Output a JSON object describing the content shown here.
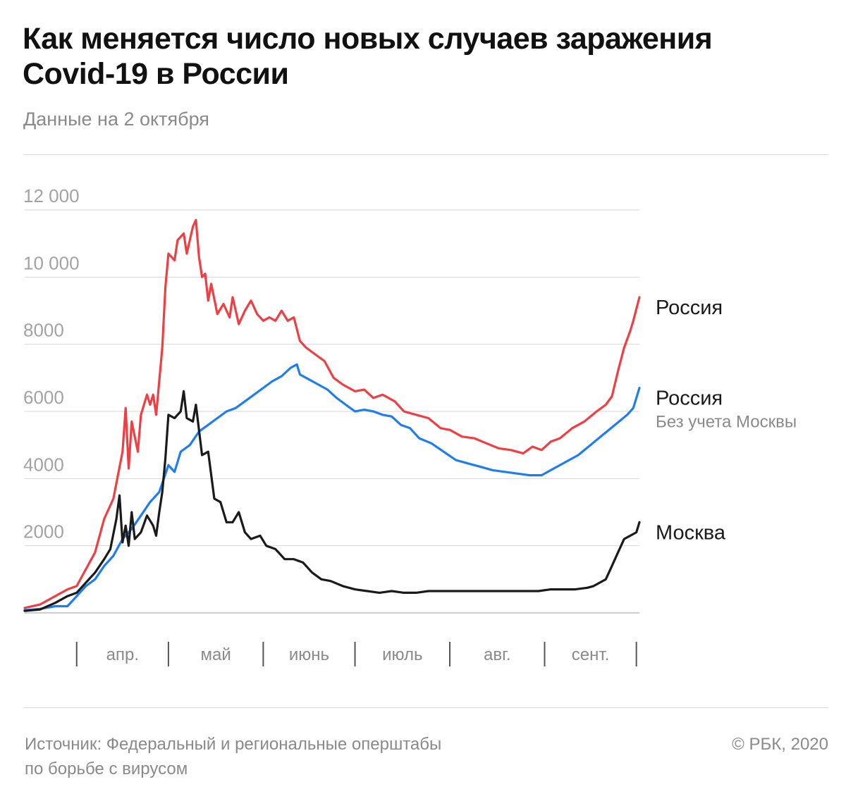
{
  "header": {
    "title_line1": "Как меняется число новых случаев заражения",
    "title_line2": "Covid-19 в России",
    "subtitle": "Данные на 2 октября"
  },
  "footer": {
    "source_line1": "Источник: Федеральный и региональные оперштабы",
    "source_line2": "по борьбе с вирусом",
    "copyright": "© РБК, 2020"
  },
  "chart_data": {
    "type": "line",
    "title": "Как меняется число новых случаев заражения Covid-19 в России",
    "subtitle": "Данные на 2 октября",
    "x_type": "date",
    "x_range": [
      "2020-03-15",
      "2020-10-02"
    ],
    "ylim": [
      0,
      12000
    ],
    "yticks": [
      0,
      2000,
      4000,
      6000,
      8000,
      10000,
      12000
    ],
    "ytick_labels": [
      "",
      "2000",
      "4000",
      "6000",
      "8000",
      "10 000",
      "12 000"
    ],
    "xtick_labels": [
      "апр.",
      "май",
      "июнь",
      "июль",
      "авг.",
      "сент."
    ],
    "month_boundaries": [
      "2020-04-01",
      "2020-05-01",
      "2020-06-01",
      "2020-07-01",
      "2020-08-01",
      "2020-09-01",
      "2020-10-01"
    ],
    "grid": true,
    "legend_placement": "right, labels at line ends",
    "series": [
      {
        "name": "Россия",
        "sublabel": "",
        "color": "#f03e42",
        "points": [
          [
            "2020-03-15",
            150
          ],
          [
            "2020-03-20",
            250
          ],
          [
            "2020-03-25",
            500
          ],
          [
            "2020-03-29",
            700
          ],
          [
            "2020-04-01",
            800
          ],
          [
            "2020-04-04",
            1300
          ],
          [
            "2020-04-07",
            1800
          ],
          [
            "2020-04-10",
            2800
          ],
          [
            "2020-04-13",
            3400
          ],
          [
            "2020-04-16",
            4800
          ],
          [
            "2020-04-17",
            6100
          ],
          [
            "2020-04-18",
            4300
          ],
          [
            "2020-04-19",
            5700
          ],
          [
            "2020-04-21",
            4800
          ],
          [
            "2020-04-22",
            5900
          ],
          [
            "2020-04-24",
            6500
          ],
          [
            "2020-04-25",
            6200
          ],
          [
            "2020-04-26",
            6500
          ],
          [
            "2020-04-27",
            5900
          ],
          [
            "2020-04-29",
            7900
          ],
          [
            "2020-04-30",
            9700
          ],
          [
            "2020-05-01",
            10700
          ],
          [
            "2020-05-03",
            10500
          ],
          [
            "2020-05-04",
            11100
          ],
          [
            "2020-05-06",
            11300
          ],
          [
            "2020-05-07",
            10700
          ],
          [
            "2020-05-09",
            11500
          ],
          [
            "2020-05-10",
            11700
          ],
          [
            "2020-05-11",
            10600
          ],
          [
            "2020-05-12",
            10000
          ],
          [
            "2020-05-13",
            10100
          ],
          [
            "2020-05-14",
            9300
          ],
          [
            "2020-05-15",
            9800
          ],
          [
            "2020-05-17",
            8900
          ],
          [
            "2020-05-19",
            9200
          ],
          [
            "2020-05-21",
            8800
          ],
          [
            "2020-05-22",
            9400
          ],
          [
            "2020-05-24",
            8600
          ],
          [
            "2020-05-26",
            9000
          ],
          [
            "2020-05-28",
            9300
          ],
          [
            "2020-05-30",
            8900
          ],
          [
            "2020-06-01",
            8700
          ],
          [
            "2020-06-03",
            8800
          ],
          [
            "2020-06-05",
            8700
          ],
          [
            "2020-06-07",
            9000
          ],
          [
            "2020-06-09",
            8700
          ],
          [
            "2020-06-11",
            8800
          ],
          [
            "2020-06-13",
            8100
          ],
          [
            "2020-06-15",
            7900
          ],
          [
            "2020-06-18",
            7700
          ],
          [
            "2020-06-21",
            7500
          ],
          [
            "2020-06-24",
            7000
          ],
          [
            "2020-06-27",
            6800
          ],
          [
            "2020-07-01",
            6600
          ],
          [
            "2020-07-04",
            6650
          ],
          [
            "2020-07-07",
            6400
          ],
          [
            "2020-07-10",
            6500
          ],
          [
            "2020-07-14",
            6300
          ],
          [
            "2020-07-17",
            6000
          ],
          [
            "2020-07-21",
            5900
          ],
          [
            "2020-07-25",
            5800
          ],
          [
            "2020-07-29",
            5500
          ],
          [
            "2020-08-01",
            5450
          ],
          [
            "2020-08-05",
            5250
          ],
          [
            "2020-08-09",
            5200
          ],
          [
            "2020-08-13",
            5050
          ],
          [
            "2020-08-17",
            4900
          ],
          [
            "2020-08-21",
            4850
          ],
          [
            "2020-08-25",
            4750
          ],
          [
            "2020-08-28",
            4950
          ],
          [
            "2020-08-31",
            4850
          ],
          [
            "2020-09-03",
            5100
          ],
          [
            "2020-09-06",
            5200
          ],
          [
            "2020-09-10",
            5500
          ],
          [
            "2020-09-14",
            5700
          ],
          [
            "2020-09-18",
            6000
          ],
          [
            "2020-09-21",
            6200
          ],
          [
            "2020-09-23",
            6450
          ],
          [
            "2020-09-25",
            7200
          ],
          [
            "2020-09-27",
            7900
          ],
          [
            "2020-09-29",
            8400
          ],
          [
            "2020-09-30",
            8700
          ],
          [
            "2020-10-02",
            9400
          ]
        ]
      },
      {
        "name": "Россия",
        "sublabel": "Без учета Москвы",
        "color": "#1e7ef0",
        "points": [
          [
            "2020-03-15",
            80
          ],
          [
            "2020-03-20",
            120
          ],
          [
            "2020-03-25",
            200
          ],
          [
            "2020-03-29",
            200
          ],
          [
            "2020-04-01",
            500
          ],
          [
            "2020-04-04",
            800
          ],
          [
            "2020-04-07",
            1000
          ],
          [
            "2020-04-10",
            1400
          ],
          [
            "2020-04-13",
            1700
          ],
          [
            "2020-04-16",
            2200
          ],
          [
            "2020-04-19",
            2500
          ],
          [
            "2020-04-22",
            2900
          ],
          [
            "2020-04-25",
            3300
          ],
          [
            "2020-04-28",
            3600
          ],
          [
            "2020-05-01",
            4400
          ],
          [
            "2020-05-03",
            4200
          ],
          [
            "2020-05-05",
            4800
          ],
          [
            "2020-05-08",
            5000
          ],
          [
            "2020-05-11",
            5400
          ],
          [
            "2020-05-14",
            5600
          ],
          [
            "2020-05-17",
            5800
          ],
          [
            "2020-05-20",
            6000
          ],
          [
            "2020-05-23",
            6100
          ],
          [
            "2020-05-26",
            6300
          ],
          [
            "2020-05-29",
            6500
          ],
          [
            "2020-06-01",
            6700
          ],
          [
            "2020-06-04",
            6900
          ],
          [
            "2020-06-07",
            7050
          ],
          [
            "2020-06-10",
            7300
          ],
          [
            "2020-06-12",
            7400
          ],
          [
            "2020-06-13",
            7100
          ],
          [
            "2020-06-16",
            6950
          ],
          [
            "2020-06-19",
            6800
          ],
          [
            "2020-06-22",
            6650
          ],
          [
            "2020-06-25",
            6400
          ],
          [
            "2020-06-28",
            6200
          ],
          [
            "2020-07-01",
            6000
          ],
          [
            "2020-07-04",
            6050
          ],
          [
            "2020-07-07",
            6000
          ],
          [
            "2020-07-10",
            5900
          ],
          [
            "2020-07-13",
            5850
          ],
          [
            "2020-07-16",
            5600
          ],
          [
            "2020-07-19",
            5500
          ],
          [
            "2020-07-22",
            5200
          ],
          [
            "2020-07-26",
            5050
          ],
          [
            "2020-07-30",
            4800
          ],
          [
            "2020-08-03",
            4550
          ],
          [
            "2020-08-07",
            4450
          ],
          [
            "2020-08-11",
            4350
          ],
          [
            "2020-08-15",
            4250
          ],
          [
            "2020-08-19",
            4200
          ],
          [
            "2020-08-23",
            4150
          ],
          [
            "2020-08-27",
            4100
          ],
          [
            "2020-08-31",
            4100
          ],
          [
            "2020-09-04",
            4300
          ],
          [
            "2020-09-08",
            4500
          ],
          [
            "2020-09-12",
            4700
          ],
          [
            "2020-09-16",
            5000
          ],
          [
            "2020-09-20",
            5300
          ],
          [
            "2020-09-24",
            5600
          ],
          [
            "2020-09-28",
            5900
          ],
          [
            "2020-09-30",
            6100
          ],
          [
            "2020-10-02",
            6700
          ]
        ]
      },
      {
        "name": "Москва",
        "sublabel": "",
        "color": "#1a1a1a",
        "points": [
          [
            "2020-03-15",
            60
          ],
          [
            "2020-03-20",
            100
          ],
          [
            "2020-03-25",
            300
          ],
          [
            "2020-03-29",
            500
          ],
          [
            "2020-04-01",
            600
          ],
          [
            "2020-04-04",
            900
          ],
          [
            "2020-04-07",
            1200
          ],
          [
            "2020-04-10",
            1600
          ],
          [
            "2020-04-12",
            1900
          ],
          [
            "2020-04-14",
            2800
          ],
          [
            "2020-04-15",
            3500
          ],
          [
            "2020-04-16",
            2100
          ],
          [
            "2020-04-17",
            2600
          ],
          [
            "2020-04-18",
            2000
          ],
          [
            "2020-04-19",
            3000
          ],
          [
            "2020-04-20",
            2200
          ],
          [
            "2020-04-22",
            2400
          ],
          [
            "2020-04-24",
            2900
          ],
          [
            "2020-04-26",
            2600
          ],
          [
            "2020-04-27",
            2300
          ],
          [
            "2020-04-28",
            3000
          ],
          [
            "2020-04-29",
            3600
          ],
          [
            "2020-04-30",
            4600
          ],
          [
            "2020-05-01",
            5900
          ],
          [
            "2020-05-03",
            5800
          ],
          [
            "2020-05-05",
            6000
          ],
          [
            "2020-05-06",
            6600
          ],
          [
            "2020-05-07",
            5800
          ],
          [
            "2020-05-09",
            5700
          ],
          [
            "2020-05-10",
            6200
          ],
          [
            "2020-05-12",
            4700
          ],
          [
            "2020-05-14",
            4800
          ],
          [
            "2020-05-16",
            3400
          ],
          [
            "2020-05-18",
            3300
          ],
          [
            "2020-05-20",
            2700
          ],
          [
            "2020-05-22",
            2700
          ],
          [
            "2020-05-24",
            3000
          ],
          [
            "2020-05-26",
            2400
          ],
          [
            "2020-05-28",
            2200
          ],
          [
            "2020-05-31",
            2300
          ],
          [
            "2020-06-02",
            2000
          ],
          [
            "2020-06-05",
            1900
          ],
          [
            "2020-06-08",
            1600
          ],
          [
            "2020-06-11",
            1600
          ],
          [
            "2020-06-14",
            1500
          ],
          [
            "2020-06-17",
            1200
          ],
          [
            "2020-06-20",
            1000
          ],
          [
            "2020-06-23",
            950
          ],
          [
            "2020-06-27",
            800
          ],
          [
            "2020-07-01",
            700
          ],
          [
            "2020-07-05",
            650
          ],
          [
            "2020-07-09",
            600
          ],
          [
            "2020-07-13",
            650
          ],
          [
            "2020-07-17",
            600
          ],
          [
            "2020-07-21",
            600
          ],
          [
            "2020-07-25",
            650
          ],
          [
            "2020-07-29",
            650
          ],
          [
            "2020-08-02",
            650
          ],
          [
            "2020-08-06",
            650
          ],
          [
            "2020-08-10",
            650
          ],
          [
            "2020-08-14",
            650
          ],
          [
            "2020-08-18",
            650
          ],
          [
            "2020-08-22",
            650
          ],
          [
            "2020-08-26",
            650
          ],
          [
            "2020-08-30",
            650
          ],
          [
            "2020-09-03",
            700
          ],
          [
            "2020-09-07",
            700
          ],
          [
            "2020-09-11",
            700
          ],
          [
            "2020-09-15",
            750
          ],
          [
            "2020-09-17",
            800
          ],
          [
            "2020-09-19",
            900
          ],
          [
            "2020-09-21",
            1000
          ],
          [
            "2020-09-23",
            1400
          ],
          [
            "2020-09-25",
            1800
          ],
          [
            "2020-09-27",
            2200
          ],
          [
            "2020-09-29",
            2300
          ],
          [
            "2020-10-01",
            2400
          ],
          [
            "2020-10-02",
            2700
          ]
        ]
      }
    ]
  }
}
